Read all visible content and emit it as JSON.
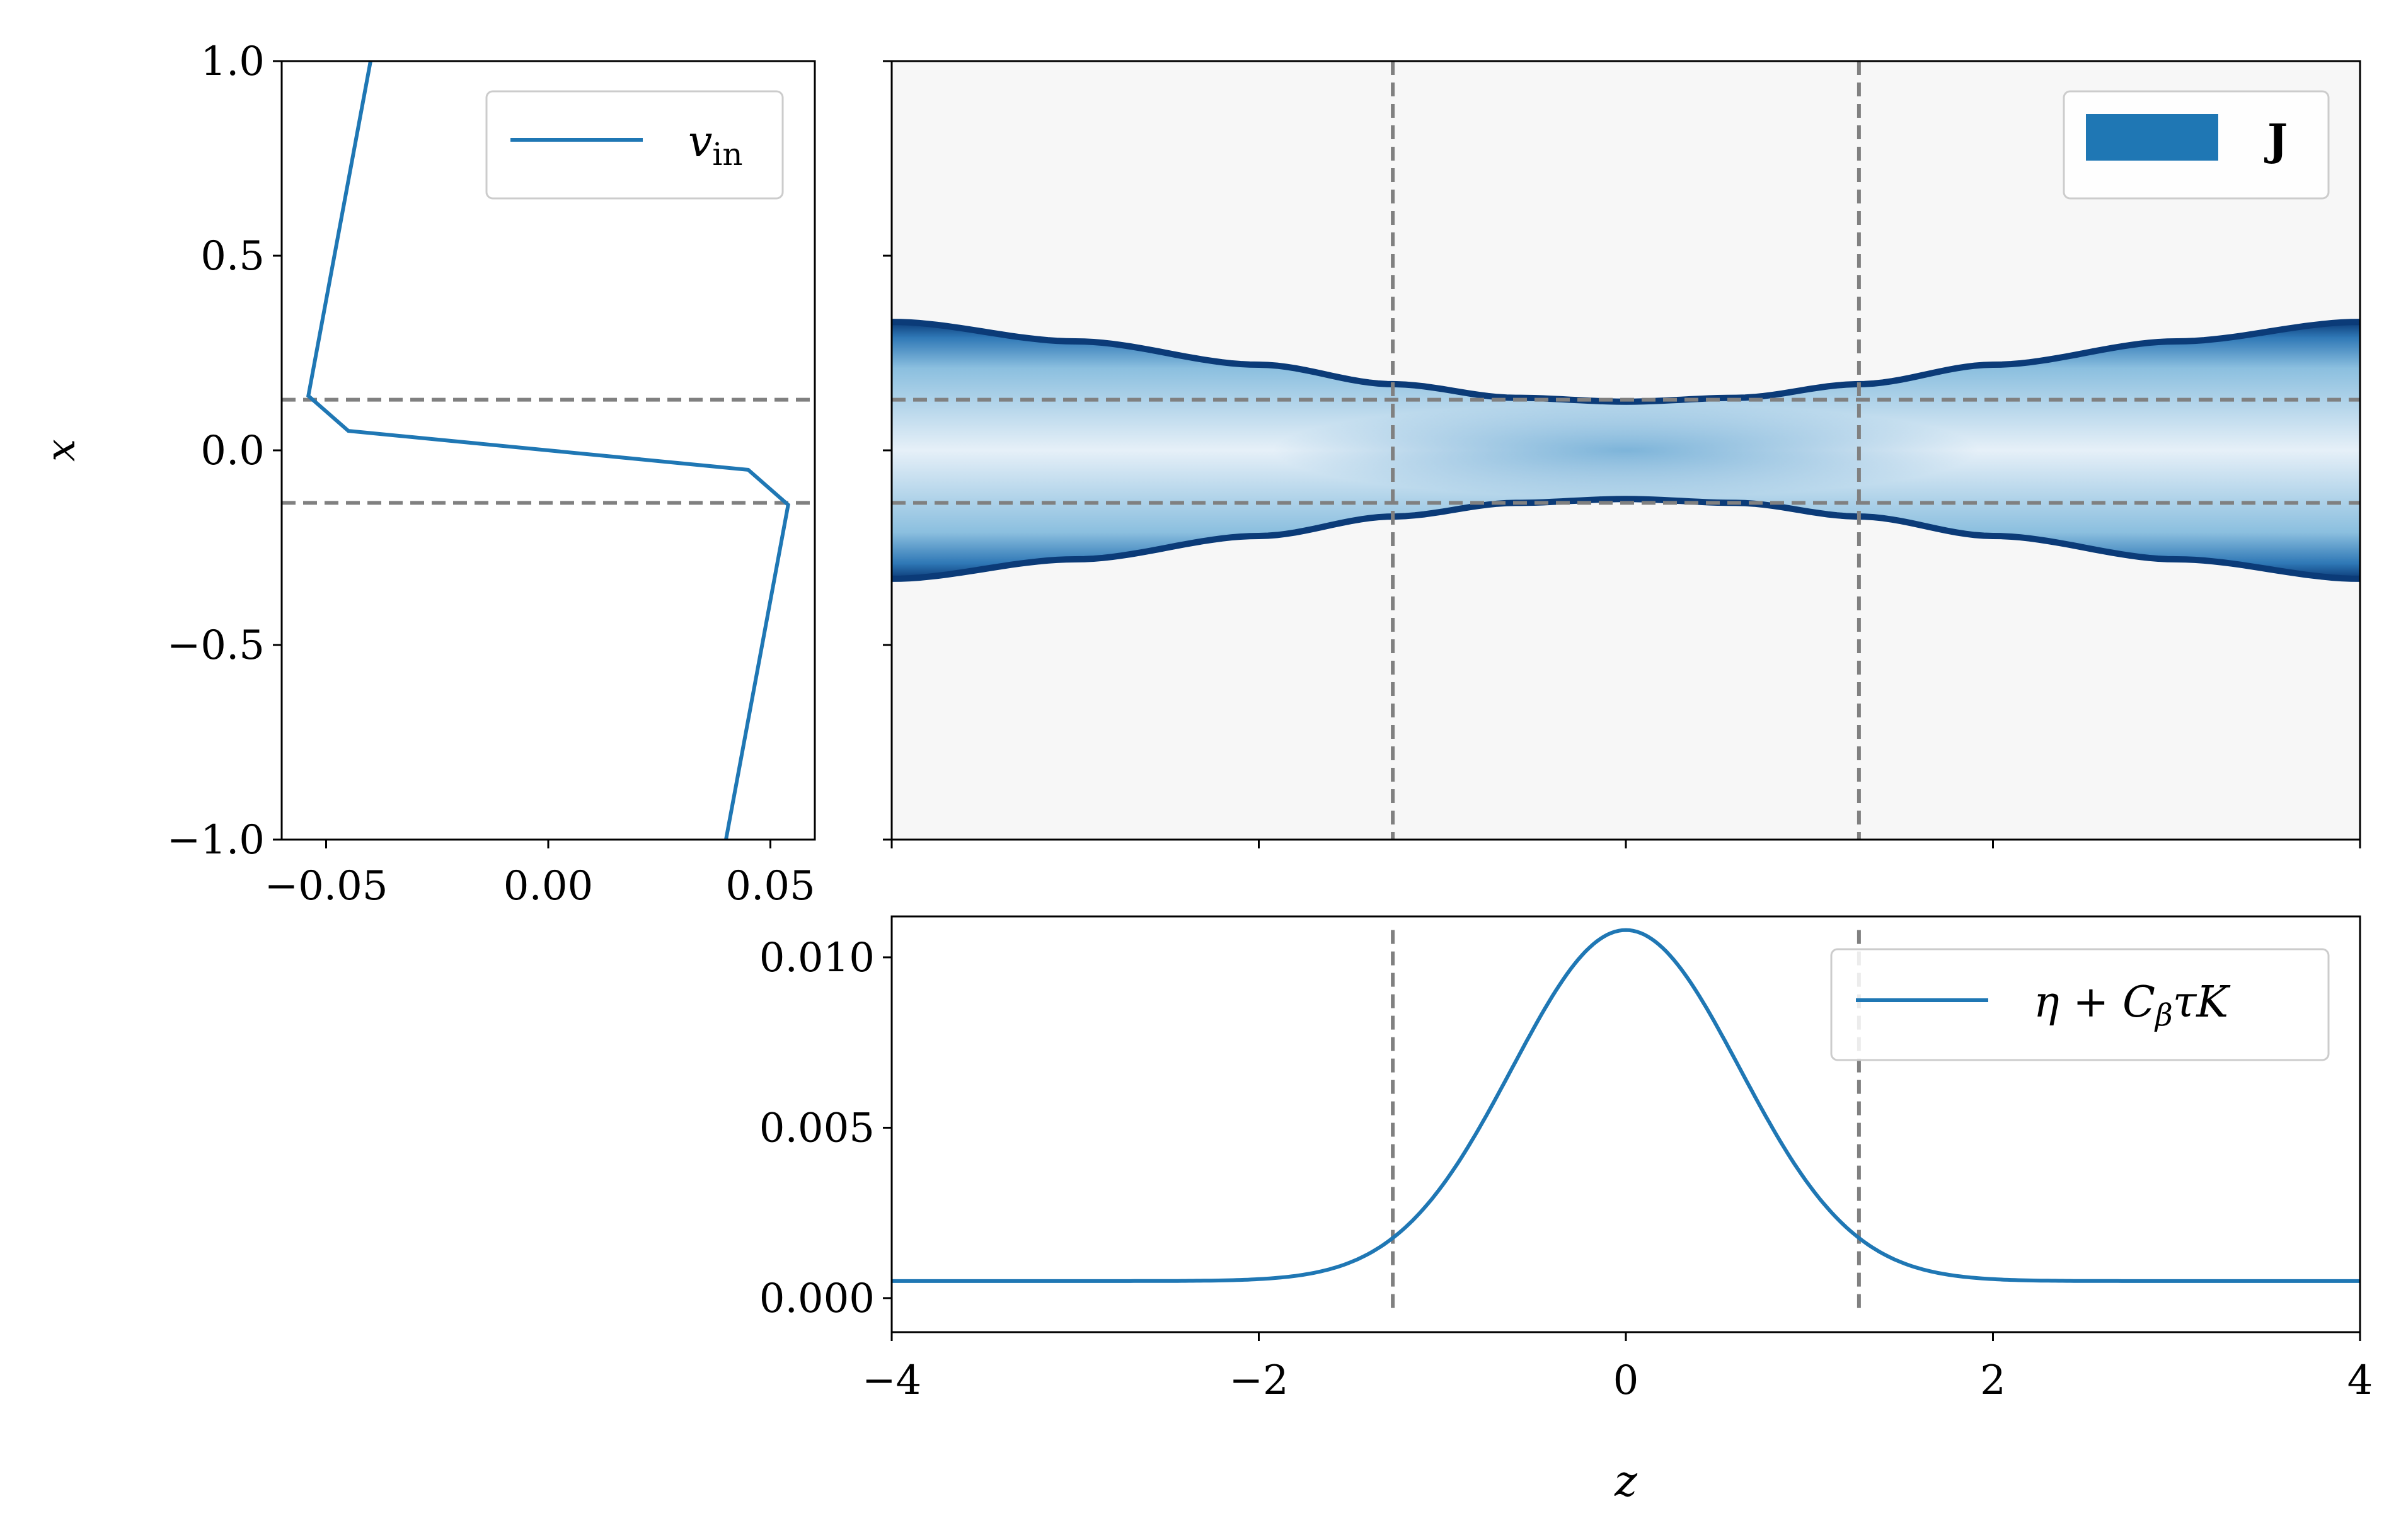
{
  "chart_data": [
    {
      "type": "line",
      "panel": "left",
      "xlabel": "",
      "ylabel": "x",
      "xlim": [
        -0.06,
        0.06
      ],
      "ylim": [
        -1.0,
        1.0
      ],
      "xticks": [
        -0.05,
        0.0,
        0.05
      ],
      "xtick_labels": [
        "−0.05",
        "0.00",
        "0.05"
      ],
      "yticks": [
        -1.0,
        -0.5,
        0.0,
        0.5,
        1.0
      ],
      "ytick_labels": [
        "−1.0",
        "−0.5",
        "0.0",
        "0.5",
        "1.0"
      ],
      "grid": false,
      "legend": "upper-right",
      "color": "#1f77b4",
      "series": [
        {
          "name": "v_in",
          "points": [
            [
              -0.04,
              1.0
            ],
            [
              -0.054,
              0.14
            ],
            [
              -0.045,
              0.05
            ],
            [
              0.0,
              0.0
            ],
            [
              0.045,
              -0.05
            ],
            [
              0.054,
              -0.14
            ],
            [
              0.04,
              -1.0
            ]
          ]
        }
      ],
      "hlines": [
        0.13,
        -0.135
      ],
      "hline_style": "dashed-gray"
    },
    {
      "type": "heatmap",
      "panel": "top-right",
      "xlim": [
        -4,
        4
      ],
      "ylim": [
        -1.0,
        1.0
      ],
      "xticks": [
        -4,
        -2,
        0,
        2,
        4
      ],
      "yticks": [
        -1.0,
        -0.5,
        0.0,
        0.5,
        1.0
      ],
      "tick_labels_shown": false,
      "grid": false,
      "legend": "upper-right",
      "legend_label": "J",
      "legend_color": "#1f77b4",
      "colormap": "RdBu",
      "background": "#f7f7f7",
      "edge_color": "#0b3b78",
      "half_width": {
        "z": [
          -4,
          -3,
          -2,
          -1.27,
          -0.6,
          0,
          0.6,
          1.27,
          2,
          3,
          4
        ],
        "x": [
          0.33,
          0.28,
          0.22,
          0.17,
          0.135,
          0.125,
          0.135,
          0.17,
          0.22,
          0.28,
          0.33
        ]
      },
      "vlines": [
        -1.27,
        1.27
      ],
      "hlines": [
        0.13,
        -0.135
      ],
      "line_style": "dashed-gray"
    },
    {
      "type": "line",
      "panel": "bottom-right",
      "xlabel": "z",
      "ylabel": "",
      "xlim": [
        -4,
        4
      ],
      "ylim": [
        -0.0005,
        0.0112
      ],
      "xticks": [
        -4,
        -2,
        0,
        2,
        4
      ],
      "xtick_labels": [
        "−4",
        "−2",
        "0",
        "2",
        "4"
      ],
      "yticks": [
        0.0,
        0.005,
        0.01
      ],
      "ytick_labels": [
        "0.000",
        "0.005",
        "0.010"
      ],
      "grid": false,
      "legend": "upper-right",
      "color": "#1f77b4",
      "series": [
        {
          "name": "η + C_β τ K",
          "model": "gaussian",
          "baseline": 0.0005,
          "peak": 0.0108,
          "sigma": 0.62,
          "center": 0
        }
      ],
      "vlines": [
        -1.27,
        1.27
      ],
      "vline_style": "dashed-gray"
    }
  ]
}
